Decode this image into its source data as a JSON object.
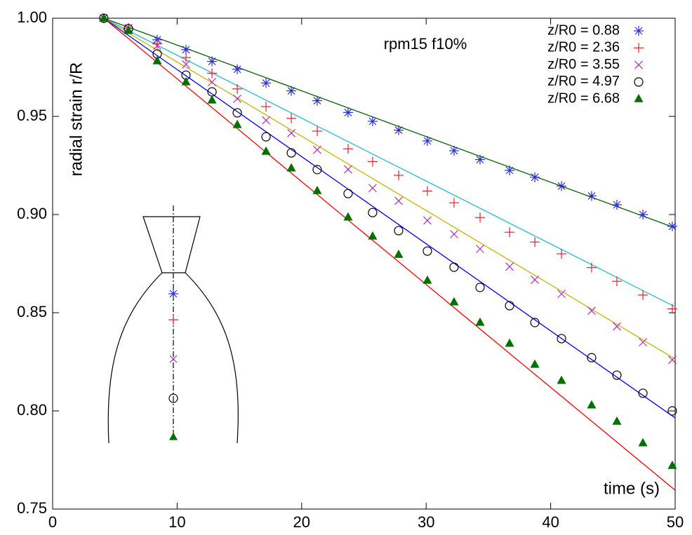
{
  "chart_data": {
    "type": "scatter",
    "annotation": "rpm15  f10%",
    "x_label": "time (s)",
    "y_label": "radial strain r/R",
    "xlim": [
      0,
      50
    ],
    "ylim": [
      0.75,
      1.0
    ],
    "xticks": [
      0,
      10,
      20,
      30,
      40,
      50
    ],
    "yticks": [
      0.75,
      {
        "value": 0.8,
        "label": "0.80"
      },
      0.85,
      {
        "value": 0.9,
        "label": "0.90"
      },
      0.95,
      {
        "value": 1.0,
        "label": "1.00"
      }
    ],
    "legend": "top-right",
    "x": [
      4.11,
      6.09,
      8.4,
      10.71,
      12.8,
      14.83,
      17.14,
      19.17,
      21.25,
      23.73,
      25.7,
      27.79,
      30.1,
      32.24,
      34.33,
      36.7,
      38.73,
      40.87,
      43.29,
      45.32,
      47.41,
      49.77
    ],
    "series": [
      {
        "name": "z/R0 = 0.88",
        "color": "#2a2ad8",
        "marker": "star",
        "values": [
          1.0,
          0.995,
          0.989,
          0.984,
          0.978,
          0.974,
          0.967,
          0.963,
          0.958,
          0.952,
          0.9475,
          0.943,
          0.9375,
          0.9325,
          0.928,
          0.9225,
          0.919,
          0.9145,
          0.9095,
          0.905,
          0.9,
          0.894
        ]
      },
      {
        "name": "z/R0 = 2.36",
        "color": "#e8202a",
        "marker": "plus",
        "values": [
          1.0,
          0.995,
          0.987,
          0.98,
          0.972,
          0.964,
          0.955,
          0.949,
          0.9425,
          0.9335,
          0.927,
          0.92,
          0.912,
          0.906,
          0.8985,
          0.891,
          0.886,
          0.88,
          0.873,
          0.866,
          0.859,
          0.852
        ]
      },
      {
        "name": "z/R0 = 3.55",
        "color": "#b02cc0",
        "marker": "cross",
        "values": [
          1.0,
          0.995,
          0.986,
          0.9765,
          0.9675,
          0.959,
          0.948,
          0.9415,
          0.933,
          0.923,
          0.9135,
          0.907,
          0.897,
          0.89,
          0.8825,
          0.8735,
          0.8668,
          0.8596,
          0.851,
          0.843,
          0.835,
          0.826
        ]
      },
      {
        "name": "z/R0 = 4.97",
        "color": "#000000",
        "marker": "circle",
        "values": [
          1.0,
          0.9946,
          0.9818,
          0.971,
          0.9625,
          0.9518,
          0.9396,
          0.9314,
          0.9229,
          0.9107,
          0.901,
          0.8918,
          0.8814,
          0.8732,
          0.8629,
          0.8536,
          0.845,
          0.8368,
          0.8271,
          0.8182,
          0.809,
          0.8
        ]
      },
      {
        "name": "z/R0 = 6.68",
        "color": "#007000",
        "marker": "triangle",
        "values": [
          1.0,
          0.9936,
          0.9782,
          0.9675,
          0.9582,
          0.9457,
          0.9321,
          0.9236,
          0.9121,
          0.8986,
          0.8889,
          0.8796,
          0.8664,
          0.8554,
          0.845,
          0.8343,
          0.8236,
          0.8154,
          0.8029,
          0.7946,
          0.7836,
          0.7721
        ]
      }
    ],
    "fits": [
      {
        "color": "#006400",
        "x": [
          4.11,
          50
        ],
        "values": [
          1.0,
          0.8932
        ]
      },
      {
        "color": "#20c0c8",
        "x": [
          4.11,
          50
        ],
        "values": [
          1.0,
          0.853
        ]
      },
      {
        "color": "#c8b400",
        "x": [
          4.11,
          50
        ],
        "values": [
          1.0,
          0.8264
        ]
      },
      {
        "color": "#0000ff",
        "x": [
          4.11,
          50
        ],
        "values": [
          1.0,
          0.7964
        ]
      },
      {
        "color": "#ff0000",
        "x": [
          4.11,
          50
        ],
        "values": [
          1.0,
          0.7596
        ]
      }
    ]
  }
}
